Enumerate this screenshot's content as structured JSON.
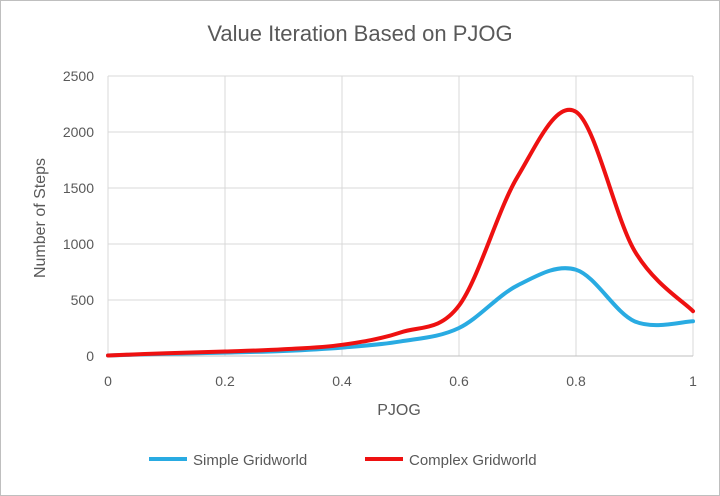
{
  "chart_data": {
    "type": "line",
    "title": "Value Iteration Based on PJOG",
    "xlabel": "PJOG",
    "ylabel": "Number of Steps",
    "xlim": [
      0,
      1
    ],
    "ylim": [
      0,
      2500
    ],
    "x_ticks": [
      0,
      0.2,
      0.4,
      0.6,
      0.8,
      1
    ],
    "x_tick_labels": [
      "0",
      "0.2",
      "0.4",
      "0.6",
      "0.8",
      "1"
    ],
    "y_ticks": [
      0,
      500,
      1000,
      1500,
      2000,
      2500
    ],
    "y_tick_labels": [
      "0",
      "500",
      "1000",
      "1500",
      "2000",
      "2500"
    ],
    "grid": true,
    "smooth": true,
    "legend_position": "bottom",
    "x": [
      0,
      0.1,
      0.2,
      0.3,
      0.4,
      0.5,
      0.6,
      0.7,
      0.8,
      0.9,
      1
    ],
    "series": [
      {
        "name": "Simple Gridworld",
        "color": "#29abe2",
        "values": [
          5,
          20,
          30,
          45,
          75,
          130,
          250,
          630,
          770,
          310,
          310
        ]
      },
      {
        "name": "Complex Gridworld",
        "color": "#ee1111",
        "values": [
          5,
          25,
          40,
          60,
          100,
          210,
          450,
          1600,
          2180,
          940,
          400
        ]
      }
    ]
  }
}
